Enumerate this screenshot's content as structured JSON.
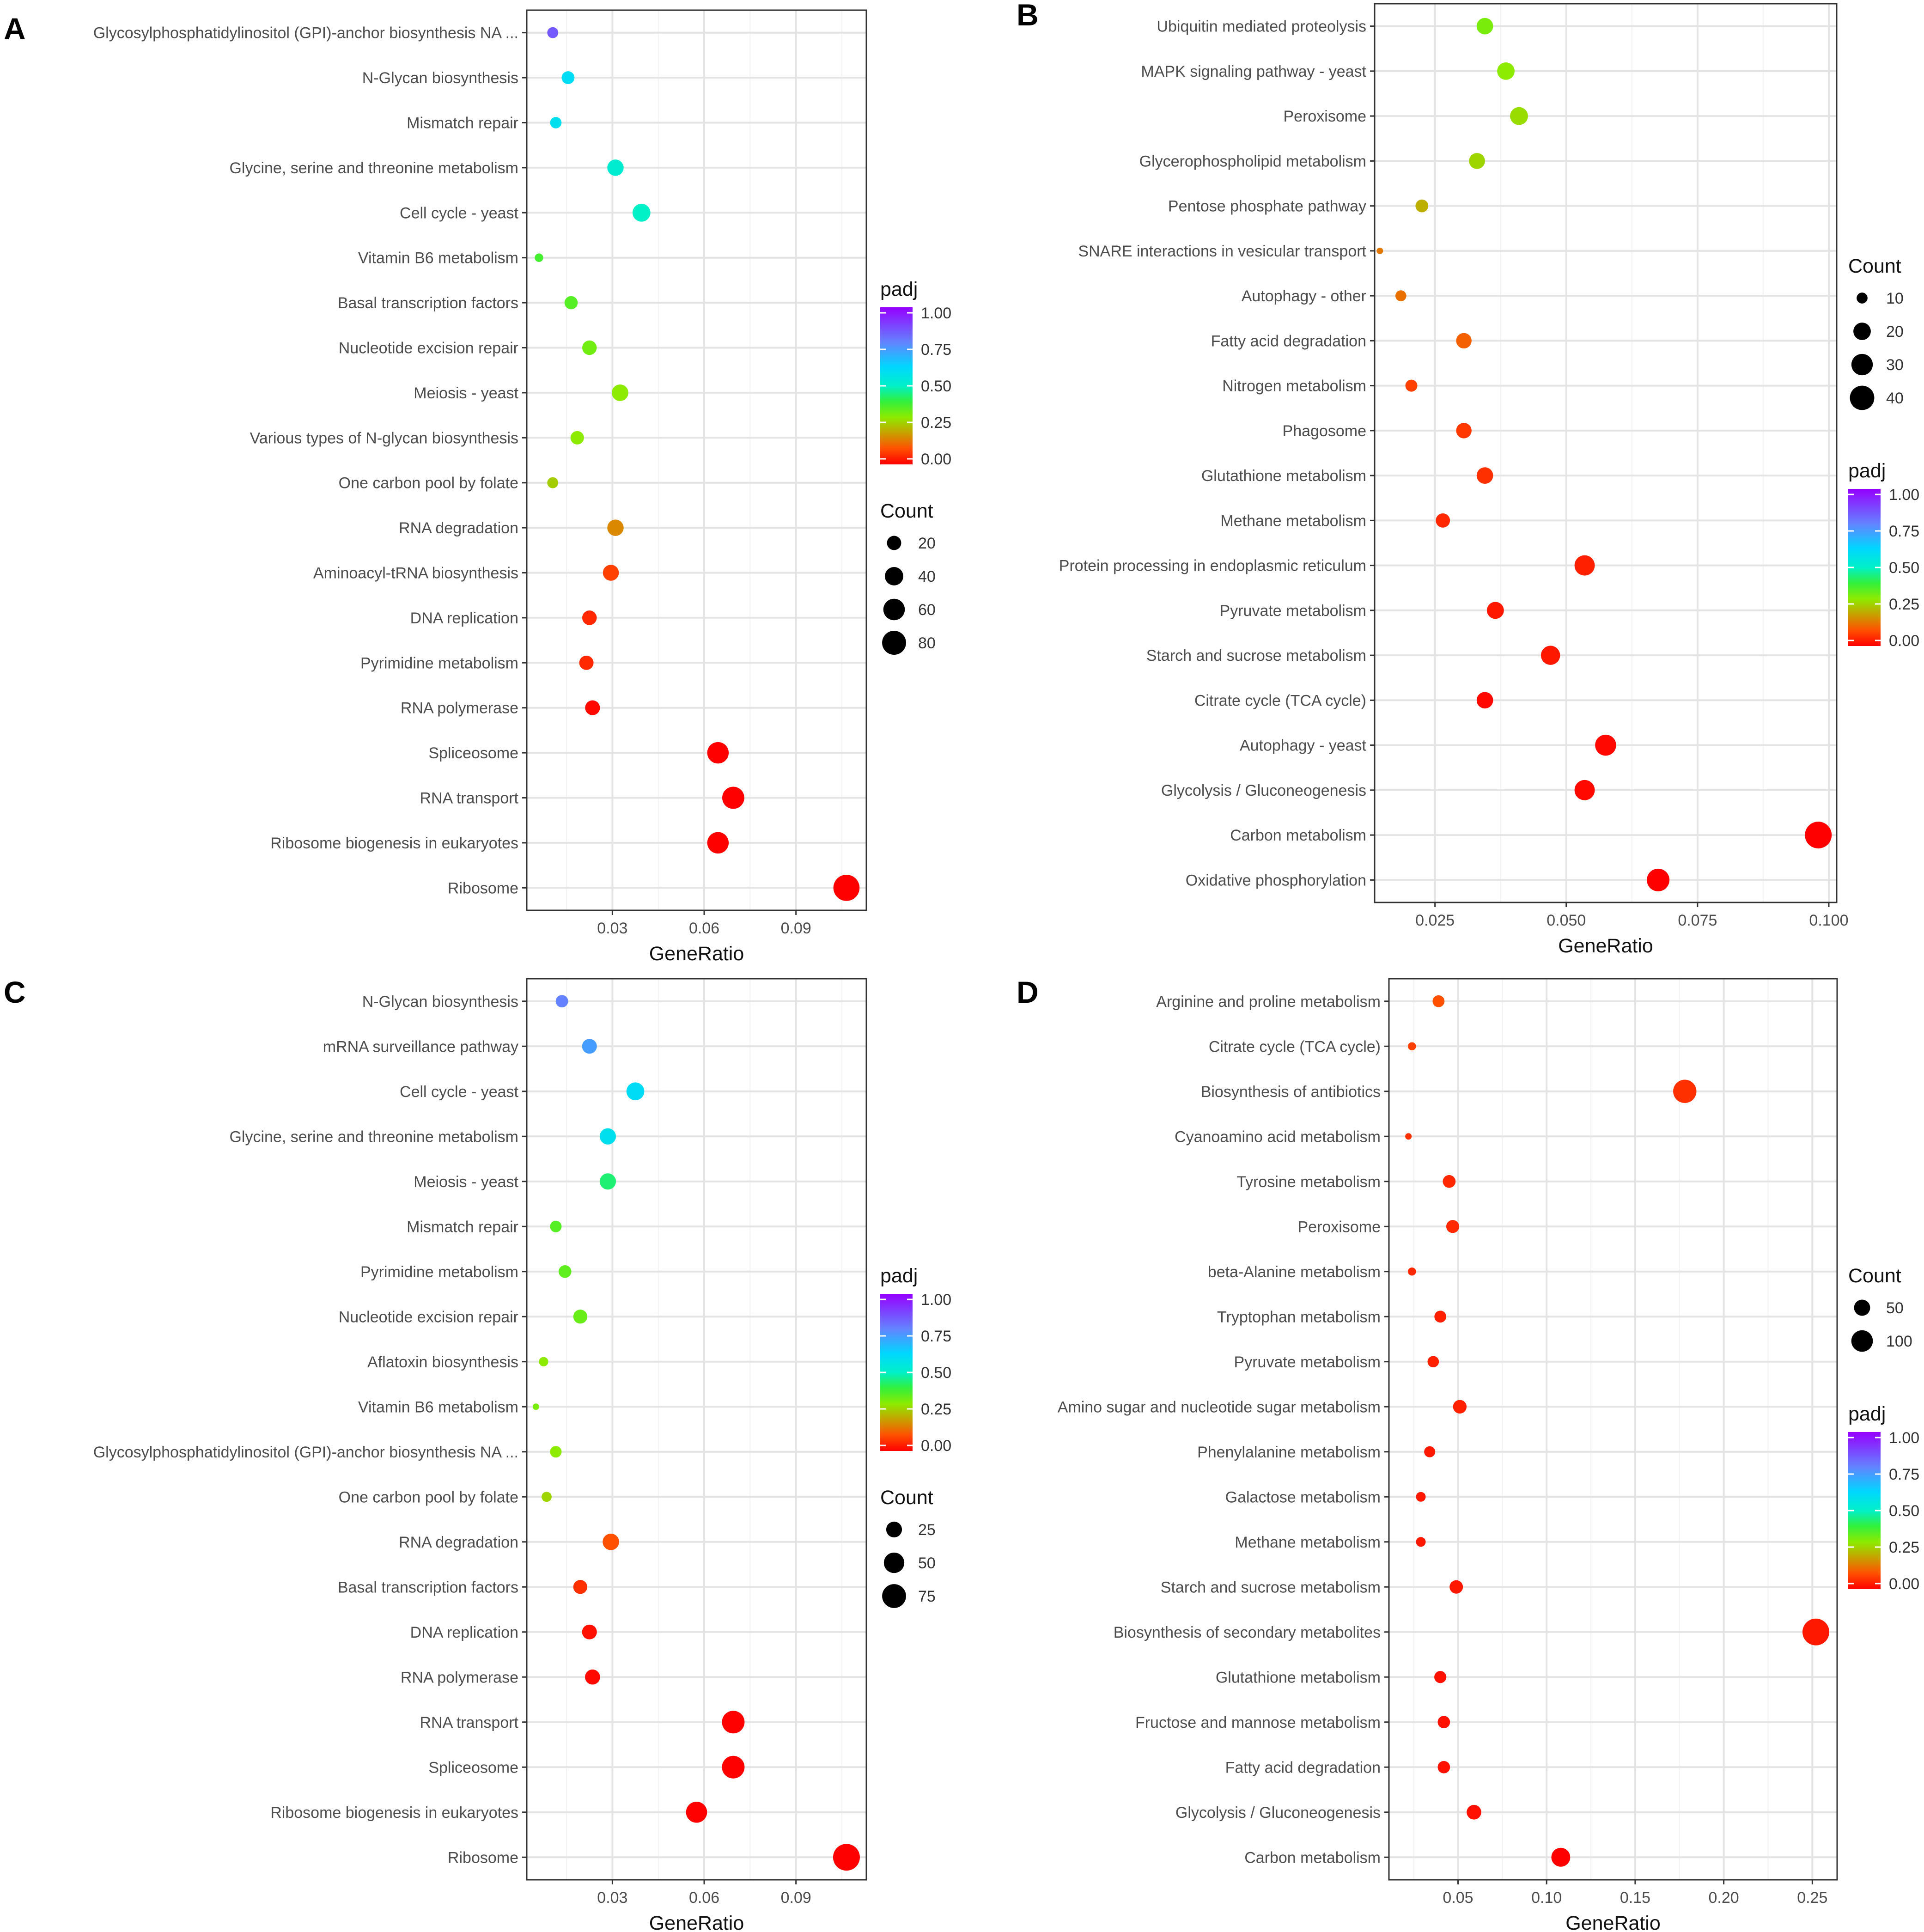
{
  "chart_data": [
    {
      "panel": "A",
      "type": "scatter",
      "xlabel": "GeneRatio",
      "xlim": [
        0.002,
        0.113
      ],
      "xticks": [
        0.03,
        0.06,
        0.09
      ],
      "xtick_labels": [
        "0.03",
        "0.06",
        "0.09"
      ],
      "categories": [
        "Glycosylphosphatidylinositol (GPI)-anchor biosynthesis NA ...",
        "N-Glycan biosynthesis",
        "Mismatch repair",
        "Glycine, serine and threonine metabolism",
        "Cell cycle - yeast",
        "Vitamin B6 metabolism",
        "Basal transcription factors",
        "Nucleotide excision repair",
        "Meiosis - yeast",
        "Various types of N-glycan biosynthesis",
        "One carbon pool by folate",
        "RNA degradation",
        "Aminoacyl-tRNA biosynthesis",
        "DNA replication",
        "Pyrimidine metabolism",
        "RNA polymerase",
        "Spliceosome",
        "RNA transport",
        "Ribosome biogenesis in eukaryotes",
        "Ribosome"
      ],
      "gene_ratio": [
        0.0105,
        0.0155,
        0.0115,
        0.031,
        0.0395,
        0.006,
        0.0165,
        0.0225,
        0.0325,
        0.0185,
        0.0105,
        0.031,
        0.0295,
        0.0225,
        0.0215,
        0.0235,
        0.0645,
        0.0695,
        0.0645,
        0.1065
      ],
      "count": [
        10,
        15,
        11,
        29,
        37,
        6,
        16,
        21,
        30,
        17,
        10,
        29,
        27,
        21,
        20,
        22,
        60,
        65,
        60,
        100
      ],
      "padj": [
        0.85,
        0.6,
        0.58,
        0.52,
        0.5,
        0.38,
        0.36,
        0.33,
        0.3,
        0.3,
        0.26,
        0.17,
        0.08,
        0.05,
        0.05,
        0.01,
        0.0,
        0.0,
        0.0,
        0.0
      ],
      "padj_legend": {
        "title": "padj",
        "labels": [
          "1.00",
          "0.75",
          "0.50",
          "0.25",
          "0.00"
        ]
      },
      "count_legend": {
        "title": "Count",
        "labels": [
          "20",
          "40",
          "60",
          "80"
        ],
        "values": [
          20,
          40,
          60,
          80
        ]
      },
      "legend_order": [
        "padj",
        "count"
      ],
      "size_range": [
        5,
        106
      ]
    },
    {
      "panel": "B",
      "type": "scatter",
      "xlabel": "GeneRatio",
      "xlim": [
        0.0135,
        0.1015
      ],
      "xticks": [
        0.025,
        0.05,
        0.075,
        0.1
      ],
      "xtick_labels": [
        "0.025",
        "0.050",
        "0.075",
        "0.100"
      ],
      "categories": [
        "Ubiquitin mediated proteolysis",
        "MAPK signaling pathway - yeast",
        "Peroxisome",
        "Glycerophospholipid metabolism",
        "Pentose phosphate pathway",
        "SNARE interactions in vesicular transport",
        "Autophagy - other",
        "Fatty acid degradation",
        "Nitrogen metabolism",
        "Phagosome",
        "Glutathione metabolism",
        "Methane metabolism",
        "Protein processing in endoplasmic reticulum",
        "Pyruvate metabolism",
        "Starch and sucrose metabolism",
        "Citrate cycle (TCA cycle)",
        "Autophagy - yeast",
        "Glycolysis / Gluconeogenesis",
        "Carbon metabolism",
        "Oxidative phosphorylation"
      ],
      "gene_ratio": [
        0.0345,
        0.0385,
        0.041,
        0.033,
        0.0225,
        0.0145,
        0.0185,
        0.0305,
        0.0205,
        0.0305,
        0.0345,
        0.0265,
        0.0535,
        0.0365,
        0.047,
        0.0345,
        0.0575,
        0.0535,
        0.098,
        0.0675
      ],
      "count": [
        18,
        20,
        21,
        17,
        12,
        8,
        10,
        16,
        11,
        16,
        18,
        14,
        27,
        19,
        24,
        18,
        29,
        27,
        49,
        34
      ],
      "padj": [
        0.32,
        0.3,
        0.28,
        0.27,
        0.22,
        0.15,
        0.14,
        0.12,
        0.08,
        0.07,
        0.06,
        0.05,
        0.04,
        0.03,
        0.03,
        0.01,
        0.01,
        0.01,
        0.0,
        0.0
      ],
      "padj_legend": {
        "title": "padj",
        "labels": [
          "1.00",
          "0.75",
          "0.50",
          "0.25",
          "0.00"
        ]
      },
      "count_legend": {
        "title": "Count",
        "labels": [
          "10",
          "20",
          "30",
          "40"
        ],
        "values": [
          10,
          20,
          30,
          40
        ]
      },
      "legend_order": [
        "count",
        "padj"
      ],
      "size_range": [
        8,
        49
      ]
    },
    {
      "panel": "C",
      "type": "scatter",
      "xlabel": "GeneRatio",
      "xlim": [
        0.002,
        0.113
      ],
      "xticks": [
        0.03,
        0.06,
        0.09
      ],
      "xtick_labels": [
        "0.03",
        "0.06",
        "0.09"
      ],
      "categories": [
        "N-Glycan biosynthesis",
        "mRNA surveillance pathway",
        "Cell cycle - yeast",
        "Glycine, serine and threonine metabolism",
        "Meiosis - yeast",
        "Mismatch repair",
        "Pyrimidine metabolism",
        "Nucleotide excision repair",
        "Aflatoxin biosynthesis",
        "Vitamin B6 metabolism",
        "Glycosylphosphatidylinositol (GPI)-anchor biosynthesis NA ...",
        "One carbon pool by folate",
        "RNA degradation",
        "Basal transcription factors",
        "DNA replication",
        "RNA polymerase",
        "RNA transport",
        "Spliceosome",
        "Ribosome biogenesis in eukaryotes",
        "Ribosome"
      ],
      "gene_ratio": [
        0.0135,
        0.0225,
        0.0375,
        0.0285,
        0.0285,
        0.0115,
        0.0145,
        0.0195,
        0.0075,
        0.005,
        0.0115,
        0.0085,
        0.0295,
        0.0195,
        0.0225,
        0.0235,
        0.0695,
        0.0695,
        0.0575,
        0.1065
      ],
      "count": [
        13,
        21,
        35,
        27,
        27,
        11,
        14,
        18,
        7,
        5,
        11,
        8,
        28,
        18,
        21,
        22,
        65,
        65,
        54,
        100
      ],
      "padj": [
        0.78,
        0.73,
        0.6,
        0.58,
        0.44,
        0.36,
        0.35,
        0.34,
        0.3,
        0.32,
        0.3,
        0.27,
        0.1,
        0.06,
        0.02,
        0.01,
        0.0,
        0.0,
        0.0,
        0.0
      ],
      "padj_legend": {
        "title": "padj",
        "labels": [
          "1.00",
          "0.75",
          "0.50",
          "0.25",
          "0.00"
        ]
      },
      "count_legend": {
        "title": "Count",
        "labels": [
          "25",
          "50",
          "75"
        ],
        "values": [
          25,
          50,
          75
        ]
      },
      "legend_order": [
        "padj",
        "count"
      ],
      "size_range": [
        5,
        100
      ]
    },
    {
      "panel": "D",
      "type": "scatter",
      "xlabel": "GeneRatio",
      "xlim": [
        0.011,
        0.264
      ],
      "xticks": [
        0.05,
        0.1,
        0.15,
        0.2,
        0.25
      ],
      "xtick_labels": [
        "0.05",
        "0.10",
        "0.15",
        "0.20",
        "0.25"
      ],
      "categories": [
        "Arginine and proline metabolism",
        "Citrate cycle (TCA cycle)",
        "Biosynthesis of antibiotics",
        "Cyanoamino acid metabolism",
        "Tyrosine metabolism",
        "Peroxisome",
        "beta-Alanine metabolism",
        "Tryptophan metabolism",
        "Pyruvate metabolism",
        "Amino sugar and nucleotide sugar metabolism",
        "Phenylalanine metabolism",
        "Galactose metabolism",
        "Methane metabolism",
        "Starch and sucrose metabolism",
        "Biosynthesis of secondary metabolites",
        "Glutathione metabolism",
        "Fructose and mannose metabolism",
        "Fatty acid degradation",
        "Glycolysis / Gluconeogenesis",
        "Carbon metabolism"
      ],
      "gene_ratio": [
        0.039,
        0.024,
        0.178,
        0.022,
        0.045,
        0.047,
        0.024,
        0.04,
        0.036,
        0.051,
        0.034,
        0.029,
        0.029,
        0.049,
        0.252,
        0.04,
        0.042,
        0.042,
        0.059,
        0.108
      ],
      "count": [
        26,
        16,
        121,
        15,
        30,
        31,
        16,
        26,
        24,
        34,
        23,
        19,
        19,
        33,
        170,
        27,
        28,
        28,
        40,
        73
      ],
      "padj": [
        0.1,
        0.08,
        0.06,
        0.06,
        0.05,
        0.05,
        0.05,
        0.04,
        0.04,
        0.04,
        0.03,
        0.03,
        0.03,
        0.03,
        0.03,
        0.02,
        0.02,
        0.02,
        0.02,
        0.0
      ],
      "padj_legend": {
        "title": "padj",
        "labels": [
          "1.00",
          "0.75",
          "0.50",
          "0.25",
          "0.00"
        ]
      },
      "count_legend": {
        "title": "Count",
        "labels": [
          "50",
          "100"
        ],
        "values": [
          50,
          100
        ]
      },
      "legend_order": [
        "count",
        "padj"
      ],
      "size_range": [
        15,
        170
      ]
    }
  ]
}
